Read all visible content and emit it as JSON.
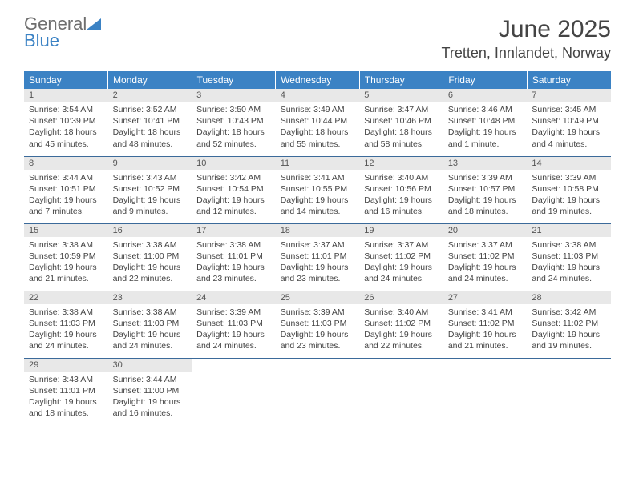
{
  "logo": {
    "line1": "General",
    "line2": "Blue"
  },
  "title": "June 2025",
  "location": "Tretten, Innlandet, Norway",
  "colors": {
    "header_bg": "#3b82c4",
    "header_text": "#ffffff",
    "daynum_bg": "#e8e8e8",
    "row_border": "#3b6a9a",
    "logo_gray": "#6e6e6e",
    "logo_blue": "#3b82c4"
  },
  "weekdays": [
    "Sunday",
    "Monday",
    "Tuesday",
    "Wednesday",
    "Thursday",
    "Friday",
    "Saturday"
  ],
  "weeks": [
    [
      {
        "n": "1",
        "sunrise": "Sunrise: 3:54 AM",
        "sunset": "Sunset: 10:39 PM",
        "daylight": "Daylight: 18 hours and 45 minutes."
      },
      {
        "n": "2",
        "sunrise": "Sunrise: 3:52 AM",
        "sunset": "Sunset: 10:41 PM",
        "daylight": "Daylight: 18 hours and 48 minutes."
      },
      {
        "n": "3",
        "sunrise": "Sunrise: 3:50 AM",
        "sunset": "Sunset: 10:43 PM",
        "daylight": "Daylight: 18 hours and 52 minutes."
      },
      {
        "n": "4",
        "sunrise": "Sunrise: 3:49 AM",
        "sunset": "Sunset: 10:44 PM",
        "daylight": "Daylight: 18 hours and 55 minutes."
      },
      {
        "n": "5",
        "sunrise": "Sunrise: 3:47 AM",
        "sunset": "Sunset: 10:46 PM",
        "daylight": "Daylight: 18 hours and 58 minutes."
      },
      {
        "n": "6",
        "sunrise": "Sunrise: 3:46 AM",
        "sunset": "Sunset: 10:48 PM",
        "daylight": "Daylight: 19 hours and 1 minute."
      },
      {
        "n": "7",
        "sunrise": "Sunrise: 3:45 AM",
        "sunset": "Sunset: 10:49 PM",
        "daylight": "Daylight: 19 hours and 4 minutes."
      }
    ],
    [
      {
        "n": "8",
        "sunrise": "Sunrise: 3:44 AM",
        "sunset": "Sunset: 10:51 PM",
        "daylight": "Daylight: 19 hours and 7 minutes."
      },
      {
        "n": "9",
        "sunrise": "Sunrise: 3:43 AM",
        "sunset": "Sunset: 10:52 PM",
        "daylight": "Daylight: 19 hours and 9 minutes."
      },
      {
        "n": "10",
        "sunrise": "Sunrise: 3:42 AM",
        "sunset": "Sunset: 10:54 PM",
        "daylight": "Daylight: 19 hours and 12 minutes."
      },
      {
        "n": "11",
        "sunrise": "Sunrise: 3:41 AM",
        "sunset": "Sunset: 10:55 PM",
        "daylight": "Daylight: 19 hours and 14 minutes."
      },
      {
        "n": "12",
        "sunrise": "Sunrise: 3:40 AM",
        "sunset": "Sunset: 10:56 PM",
        "daylight": "Daylight: 19 hours and 16 minutes."
      },
      {
        "n": "13",
        "sunrise": "Sunrise: 3:39 AM",
        "sunset": "Sunset: 10:57 PM",
        "daylight": "Daylight: 19 hours and 18 minutes."
      },
      {
        "n": "14",
        "sunrise": "Sunrise: 3:39 AM",
        "sunset": "Sunset: 10:58 PM",
        "daylight": "Daylight: 19 hours and 19 minutes."
      }
    ],
    [
      {
        "n": "15",
        "sunrise": "Sunrise: 3:38 AM",
        "sunset": "Sunset: 10:59 PM",
        "daylight": "Daylight: 19 hours and 21 minutes."
      },
      {
        "n": "16",
        "sunrise": "Sunrise: 3:38 AM",
        "sunset": "Sunset: 11:00 PM",
        "daylight": "Daylight: 19 hours and 22 minutes."
      },
      {
        "n": "17",
        "sunrise": "Sunrise: 3:38 AM",
        "sunset": "Sunset: 11:01 PM",
        "daylight": "Daylight: 19 hours and 23 minutes."
      },
      {
        "n": "18",
        "sunrise": "Sunrise: 3:37 AM",
        "sunset": "Sunset: 11:01 PM",
        "daylight": "Daylight: 19 hours and 23 minutes."
      },
      {
        "n": "19",
        "sunrise": "Sunrise: 3:37 AM",
        "sunset": "Sunset: 11:02 PM",
        "daylight": "Daylight: 19 hours and 24 minutes."
      },
      {
        "n": "20",
        "sunrise": "Sunrise: 3:37 AM",
        "sunset": "Sunset: 11:02 PM",
        "daylight": "Daylight: 19 hours and 24 minutes."
      },
      {
        "n": "21",
        "sunrise": "Sunrise: 3:38 AM",
        "sunset": "Sunset: 11:03 PM",
        "daylight": "Daylight: 19 hours and 24 minutes."
      }
    ],
    [
      {
        "n": "22",
        "sunrise": "Sunrise: 3:38 AM",
        "sunset": "Sunset: 11:03 PM",
        "daylight": "Daylight: 19 hours and 24 minutes."
      },
      {
        "n": "23",
        "sunrise": "Sunrise: 3:38 AM",
        "sunset": "Sunset: 11:03 PM",
        "daylight": "Daylight: 19 hours and 24 minutes."
      },
      {
        "n": "24",
        "sunrise": "Sunrise: 3:39 AM",
        "sunset": "Sunset: 11:03 PM",
        "daylight": "Daylight: 19 hours and 24 minutes."
      },
      {
        "n": "25",
        "sunrise": "Sunrise: 3:39 AM",
        "sunset": "Sunset: 11:03 PM",
        "daylight": "Daylight: 19 hours and 23 minutes."
      },
      {
        "n": "26",
        "sunrise": "Sunrise: 3:40 AM",
        "sunset": "Sunset: 11:02 PM",
        "daylight": "Daylight: 19 hours and 22 minutes."
      },
      {
        "n": "27",
        "sunrise": "Sunrise: 3:41 AM",
        "sunset": "Sunset: 11:02 PM",
        "daylight": "Daylight: 19 hours and 21 minutes."
      },
      {
        "n": "28",
        "sunrise": "Sunrise: 3:42 AM",
        "sunset": "Sunset: 11:02 PM",
        "daylight": "Daylight: 19 hours and 19 minutes."
      }
    ],
    [
      {
        "n": "29",
        "sunrise": "Sunrise: 3:43 AM",
        "sunset": "Sunset: 11:01 PM",
        "daylight": "Daylight: 19 hours and 18 minutes."
      },
      {
        "n": "30",
        "sunrise": "Sunrise: 3:44 AM",
        "sunset": "Sunset: 11:00 PM",
        "daylight": "Daylight: 19 hours and 16 minutes."
      },
      null,
      null,
      null,
      null,
      null
    ]
  ]
}
